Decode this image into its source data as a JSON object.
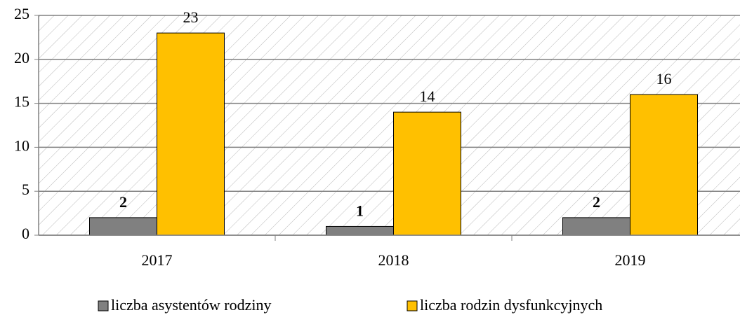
{
  "chart_data": {
    "type": "bar",
    "categories": [
      "2017",
      "2018",
      "2019"
    ],
    "series": [
      {
        "name": "liczba asystentów rodziny",
        "color": "#808080",
        "values": [
          2,
          1,
          2
        ]
      },
      {
        "name": "liczba rodzin dysfunkcyjnych",
        "color": "#ffc000",
        "values": [
          23,
          14,
          16
        ]
      }
    ],
    "ylim": [
      0,
      25
    ],
    "yticks": [
      0,
      5,
      10,
      15,
      20,
      25
    ],
    "grid": true,
    "legend": "bottom"
  }
}
